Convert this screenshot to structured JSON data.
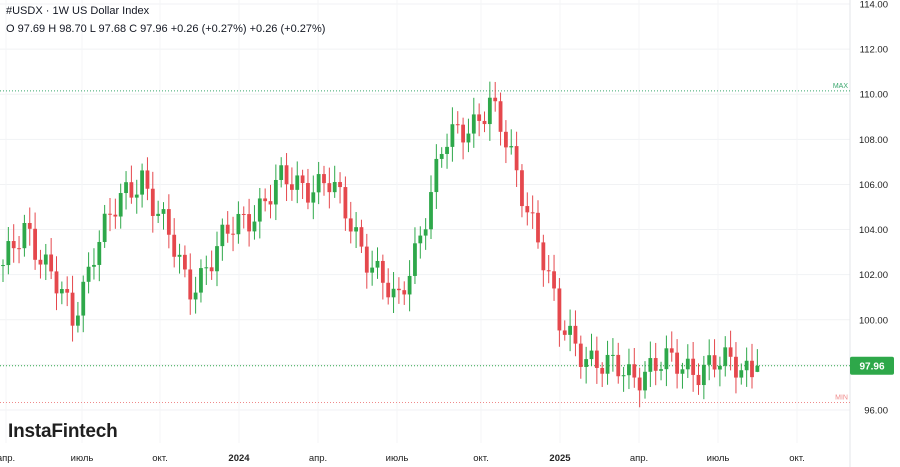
{
  "header": {
    "symbol": "#USDX",
    "separator": "·",
    "description": "1W US Dollar Index",
    "ohlc_line": "O 97.69 H 98.70 L 97.68 C 97.96 +0.26 (+0.27%) +0.26 (+0.27%)"
  },
  "brand": "InstaFintech",
  "colors": {
    "up": "#2ea84a",
    "down": "#e5484d",
    "max_line": "#3aa76d",
    "min_line": "#ef8a8a",
    "current_price_bg": "#2ea84a",
    "axis_text": "#222222"
  },
  "chart_data": {
    "type": "candlestick",
    "title": "1W US Dollar Index",
    "symbol": "#USDX",
    "y_axis": {
      "side": "right",
      "range": [
        95.6,
        114.1
      ],
      "ticks": [
        "96.00",
        "98.00",
        "100.00",
        "102.00",
        "104.00",
        "106.00",
        "108.00",
        "110.00",
        "112.00",
        "114.00"
      ]
    },
    "x_axis": {
      "ticks": [
        {
          "label": "апр.",
          "bold": false
        },
        {
          "label": "июль",
          "bold": false
        },
        {
          "label": "окт.",
          "bold": false
        },
        {
          "label": "2024",
          "bold": true
        },
        {
          "label": "апр.",
          "bold": false
        },
        {
          "label": "июль",
          "bold": false
        },
        {
          "label": "окт.",
          "bold": false
        },
        {
          "label": "2025",
          "bold": true
        },
        {
          "label": "апр.",
          "bold": false
        },
        {
          "label": "июль",
          "bold": false
        },
        {
          "label": "окт.",
          "bold": false
        }
      ]
    },
    "reference_lines": [
      {
        "label": "MAX",
        "value": 110.15,
        "style": "dotted",
        "color": "#3aa76d"
      },
      {
        "label": "MIN",
        "value": 96.33,
        "style": "dotted",
        "color": "#ef8a8a"
      }
    ],
    "current_price": {
      "label": "97.96",
      "value": 97.96
    },
    "last_bar": {
      "open": 97.69,
      "high": 98.7,
      "low": 97.68,
      "close": 97.96
    },
    "approximate_close_path": [
      {
        "date": "2023-04",
        "close": 102.1
      },
      {
        "date": "2023-05",
        "close": 104.3
      },
      {
        "date": "2023-07",
        "close": 99.9
      },
      {
        "date": "2023-08",
        "close": 103.5
      },
      {
        "date": "2023-10",
        "close": 106.5
      },
      {
        "date": "2023-12",
        "close": 101.4
      },
      {
        "date": "2024-02",
        "close": 104.1
      },
      {
        "date": "2024-04",
        "close": 106.0
      },
      {
        "date": "2024-06",
        "close": 106.1
      },
      {
        "date": "2024-08",
        "close": 102.4
      },
      {
        "date": "2024-09",
        "close": 100.4
      },
      {
        "date": "2024-11",
        "close": 107.6
      },
      {
        "date": "2025-01",
        "close": 109.6
      },
      {
        "date": "2025-03",
        "close": 104.1
      },
      {
        "date": "2025-04",
        "close": 99.6
      },
      {
        "date": "2025-06",
        "close": 97.8
      },
      {
        "date": "2025-07",
        "close": 97.6
      },
      {
        "date": "2025-08",
        "close": 97.96
      }
    ]
  }
}
